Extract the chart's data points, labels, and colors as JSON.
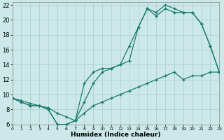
{
  "xlabel": "Humidex (Indice chaleur)",
  "background_color": "#cce8e8",
  "grid_color": "#aacccc",
  "line_color": "#1a7a6e",
  "xlim": [
    0,
    23
  ],
  "ylim": [
    6,
    22.4
  ],
  "xticks": [
    0,
    1,
    2,
    3,
    4,
    5,
    6,
    7,
    8,
    9,
    10,
    11,
    12,
    13,
    14,
    15,
    16,
    17,
    18,
    19,
    20,
    21,
    22,
    23
  ],
  "yticks": [
    6,
    8,
    10,
    12,
    14,
    16,
    18,
    20,
    22
  ],
  "line1_x": [
    0,
    1,
    2,
    3,
    4,
    5,
    6,
    7,
    8,
    9,
    10,
    11,
    12,
    13,
    14,
    15,
    16,
    17,
    18,
    19,
    20,
    21,
    22,
    23
  ],
  "line1_y": [
    9.5,
    9.0,
    8.5,
    8.5,
    8.0,
    6.0,
    6.0,
    6.5,
    9.0,
    11.5,
    13.0,
    13.5,
    14.0,
    16.5,
    19.0,
    21.5,
    21.0,
    22.0,
    21.5,
    21.0,
    21.0,
    19.5,
    16.5,
    13.0
  ],
  "line2_x": [
    0,
    1,
    2,
    3,
    4,
    5,
    6,
    7,
    8,
    9,
    10,
    11,
    12,
    13,
    14,
    15,
    16,
    17,
    18,
    19,
    20,
    21,
    22,
    23
  ],
  "line2_y": [
    9.5,
    9.0,
    8.5,
    8.5,
    8.0,
    6.0,
    6.0,
    6.5,
    11.5,
    13.0,
    13.5,
    13.5,
    14.0,
    14.5,
    19.0,
    21.5,
    20.5,
    21.5,
    21.0,
    21.0,
    21.0,
    19.5,
    16.5,
    13.0
  ],
  "line3_x": [
    0,
    1,
    2,
    3,
    4,
    5,
    6,
    7,
    8,
    9,
    10,
    11,
    12,
    13,
    14,
    15,
    16,
    17,
    18,
    19,
    20,
    21,
    22,
    23
  ],
  "line3_y": [
    9.5,
    9.2,
    8.8,
    8.5,
    8.2,
    7.5,
    7.0,
    6.5,
    7.5,
    8.5,
    9.0,
    9.5,
    10.0,
    10.5,
    11.0,
    11.5,
    12.0,
    12.5,
    13.0,
    12.0,
    12.5,
    12.5,
    13.0,
    13.0
  ]
}
